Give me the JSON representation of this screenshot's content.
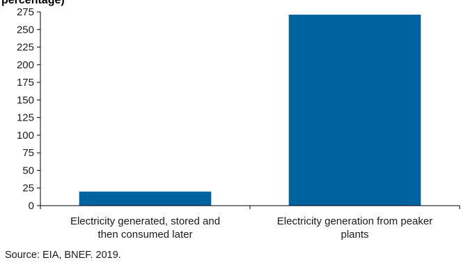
{
  "title_fragment": "percentage)",
  "source": "Source: EIA, BNEF. 2019.",
  "colors": {
    "bar": "#0063a0",
    "axis": "#000000",
    "text": "#1a1a1a"
  },
  "chart_data": {
    "type": "bar",
    "title": "",
    "xlabel": "",
    "ylabel": "",
    "ylim": [
      0,
      275
    ],
    "yticks": [
      0,
      25,
      50,
      75,
      100,
      125,
      150,
      175,
      200,
      225,
      250,
      275
    ],
    "grid": false,
    "categories": [
      [
        "Electricity generated, stored and",
        "then consumed later"
      ],
      [
        "Electricity generation from peaker",
        "plants"
      ]
    ],
    "values": [
      20,
      271
    ]
  }
}
